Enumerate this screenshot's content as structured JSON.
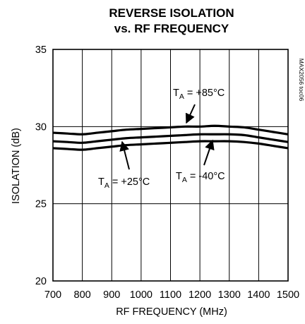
{
  "chart_data": {
    "type": "line",
    "title_lines": [
      "REVERSE ISOLATION",
      "vs. RF FREQUENCY"
    ],
    "xlabel": "RF FREQUENCY (MHz)",
    "ylabel": "ISOLATION (dB)",
    "xlim": [
      700,
      1500
    ],
    "ylim": [
      20,
      35
    ],
    "xticks": [
      700,
      800,
      900,
      1000,
      1100,
      1200,
      1300,
      1400,
      1500
    ],
    "yticks": [
      20,
      25,
      30,
      35
    ],
    "grid": true,
    "figure_code": "MAX2056 toc06",
    "x": [
      700,
      750,
      800,
      850,
      900,
      950,
      1000,
      1050,
      1100,
      1150,
      1200,
      1250,
      1300,
      1350,
      1400,
      1450,
      1500
    ],
    "series": [
      {
        "name_main": "T",
        "name_sub": "A",
        "name_rest": " = +85°C",
        "values": [
          29.6,
          29.55,
          29.5,
          29.6,
          29.7,
          29.8,
          29.85,
          29.9,
          29.95,
          30.0,
          30.0,
          30.05,
          30.0,
          29.95,
          29.8,
          29.65,
          29.5
        ]
      },
      {
        "name_main": "T",
        "name_sub": "A",
        "name_rest": " = +25°C",
        "values": [
          29.05,
          29.0,
          28.95,
          29.05,
          29.15,
          29.25,
          29.3,
          29.35,
          29.4,
          29.45,
          29.5,
          29.5,
          29.5,
          29.45,
          29.3,
          29.15,
          29.0
        ]
      },
      {
        "name_main": "T",
        "name_sub": "A",
        "name_rest": " = -40°C",
        "values": [
          28.6,
          28.55,
          28.5,
          28.6,
          28.7,
          28.8,
          28.85,
          28.9,
          28.95,
          29.0,
          29.05,
          29.05,
          29.05,
          29.0,
          28.9,
          28.75,
          28.6
        ]
      }
    ]
  }
}
